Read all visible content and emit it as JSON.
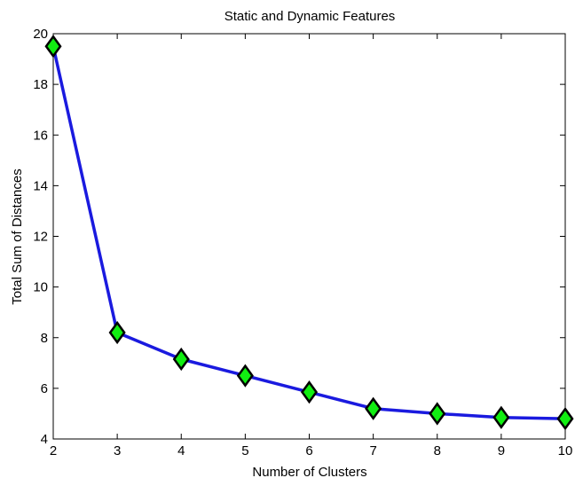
{
  "chart_data": {
    "type": "line",
    "title": "Static and Dynamic Features",
    "xlabel": "Number of Clusters",
    "ylabel": "Total Sum of Distances",
    "xlim": [
      2,
      10
    ],
    "ylim": [
      4,
      20
    ],
    "xticks": [
      "2",
      "3",
      "4",
      "5",
      "6",
      "7",
      "8",
      "9",
      "10"
    ],
    "yticks": [
      "4",
      "6",
      "8",
      "10",
      "12",
      "14",
      "16",
      "18",
      "20"
    ],
    "grid": false,
    "series": [
      {
        "x": [
          2,
          3,
          4,
          5,
          6,
          7,
          8,
          9,
          10
        ],
        "y": [
          19.5,
          8.2,
          7.15,
          6.5,
          5.85,
          5.2,
          5.0,
          4.85,
          4.8
        ],
        "line_color": "#1a1adf",
        "marker": "diamond",
        "marker_fill": "#11ee11",
        "marker_edge": "#000000"
      }
    ]
  }
}
